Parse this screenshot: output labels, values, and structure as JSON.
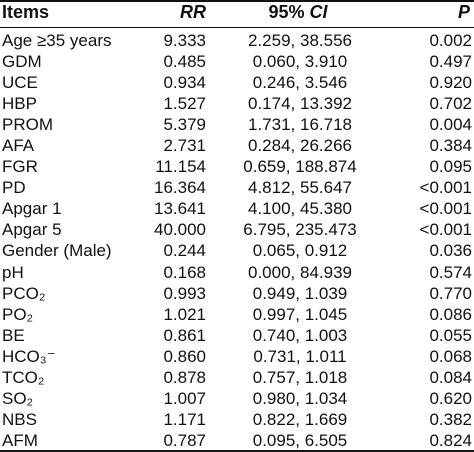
{
  "headers": {
    "items": "Items",
    "rr": "RR",
    "ci_prefix": "95% ",
    "ci_italic": "CI",
    "p": "P"
  },
  "rows": [
    {
      "item": "Age ≥35 years",
      "rr": "9.333",
      "ci": "2.259, 38.556",
      "p": "0.002"
    },
    {
      "item": "GDM",
      "rr": "0.485",
      "ci": "0.060, 3.910",
      "p": "0.497"
    },
    {
      "item": "UCE",
      "rr": "0.934",
      "ci": "0.246, 3.546",
      "p": "0.920"
    },
    {
      "item": "HBP",
      "rr": "1.527",
      "ci": "0.174, 13.392",
      "p": "0.702"
    },
    {
      "item": "PROM",
      "rr": "5.379",
      "ci": "1.731, 16.718",
      "p": "0.004"
    },
    {
      "item": "AFA",
      "rr": "2.731",
      "ci": "0.284, 26.266",
      "p": "0.384"
    },
    {
      "item": "FGR",
      "rr": "11.154",
      "ci": "0.659, 188.874",
      "p": "0.095"
    },
    {
      "item": "PD",
      "rr": "16.364",
      "ci": "4.812, 55.647",
      "p": "<0.001"
    },
    {
      "item": "Apgar 1",
      "rr": "13.641",
      "ci": "4.100, 45.380",
      "p": "<0.001"
    },
    {
      "item": "Apgar 5",
      "rr": "40.000",
      "ci": "6.795, 235.473",
      "p": "<0.001"
    },
    {
      "item": "Gender (Male)",
      "rr": "0.244",
      "ci": "0.065, 0.912",
      "p": "0.036"
    },
    {
      "item": "pH",
      "rr": "0.168",
      "ci": "0.000, 84.939",
      "p": "0.574"
    },
    {
      "item": "PCO₂",
      "rr": "0.993",
      "ci": "0.949, 1.039",
      "p": "0.770"
    },
    {
      "item": "PO₂",
      "rr": "1.021",
      "ci": "0.997, 1.045",
      "p": "0.086"
    },
    {
      "item": "BE",
      "rr": "0.861",
      "ci": "0.740, 1.003",
      "p": "0.055"
    },
    {
      "item": "HCO₃⁻",
      "rr": "0.860",
      "ci": "0.731, 1.011",
      "p": "0.068"
    },
    {
      "item": "TCO₂",
      "rr": "0.878",
      "ci": "0.757, 1.018",
      "p": "0.084"
    },
    {
      "item": "SO₂",
      "rr": "1.007",
      "ci": "0.980, 1.034",
      "p": "0.620"
    },
    {
      "item": "NBS",
      "rr": "1.171",
      "ci": "0.822, 1.669",
      "p": "0.382"
    },
    {
      "item": "AFM",
      "rr": "0.787",
      "ci": "0.095, 6.505",
      "p": "0.824"
    }
  ]
}
